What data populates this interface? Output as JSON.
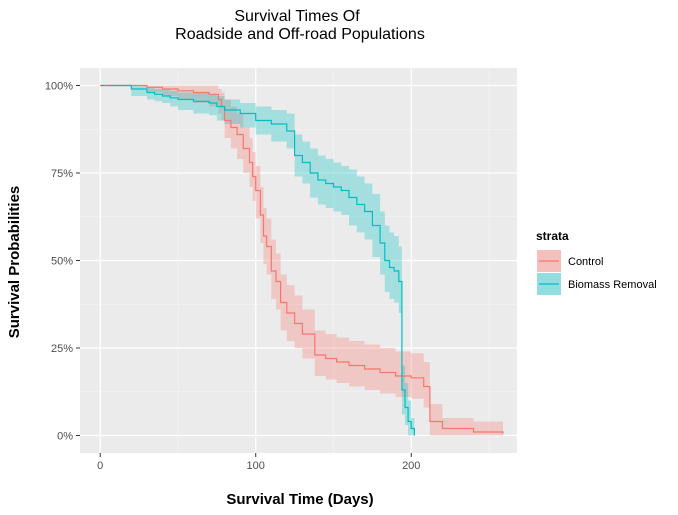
{
  "chart_data": {
    "type": "line",
    "step": true,
    "title_lines": [
      "Survival Times Of",
      "Roadside and Off-road Populations"
    ],
    "xlabel": "Survival Time (Days)",
    "ylabel": "Survival Probabilities",
    "xlim": [
      -13,
      268
    ],
    "ylim": [
      -0.05,
      1.05
    ],
    "x_ticks": [
      0,
      100,
      200
    ],
    "x_tick_labels": [
      "0",
      "100",
      "200"
    ],
    "y_ticks": [
      0,
      0.25,
      0.5,
      0.75,
      1.0
    ],
    "y_tick_labels": [
      "0%",
      "25%",
      "50%",
      "75%",
      "100%"
    ],
    "grid": true,
    "legend_position": "right",
    "legend_title": "strata",
    "series": [
      {
        "name": "Control",
        "color": "#f8766d",
        "fill": "#f8766d",
        "x": [
          0,
          30,
          40,
          50,
          60,
          70,
          76,
          78,
          80,
          84,
          88,
          92,
          96,
          98,
          100,
          103,
          105,
          107,
          110,
          113,
          116,
          120,
          125,
          130,
          138,
          145,
          152,
          160,
          170,
          180,
          190,
          200,
          208,
          212,
          220,
          240,
          259
        ],
        "y": [
          1.0,
          0.995,
          0.99,
          0.985,
          0.98,
          0.975,
          0.96,
          0.94,
          0.9,
          0.88,
          0.86,
          0.82,
          0.78,
          0.74,
          0.7,
          0.63,
          0.57,
          0.54,
          0.47,
          0.44,
          0.38,
          0.35,
          0.32,
          0.29,
          0.23,
          0.22,
          0.21,
          0.2,
          0.19,
          0.18,
          0.17,
          0.165,
          0.14,
          0.04,
          0.02,
          0.01,
          0.005
        ],
        "upper": [
          1.0,
          1.0,
          1.0,
          1.0,
          1.0,
          1.0,
          0.99,
          0.98,
          0.96,
          0.94,
          0.92,
          0.88,
          0.85,
          0.81,
          0.77,
          0.71,
          0.65,
          0.62,
          0.56,
          0.52,
          0.46,
          0.43,
          0.4,
          0.36,
          0.3,
          0.29,
          0.28,
          0.27,
          0.26,
          0.25,
          0.24,
          0.235,
          0.21,
          0.09,
          0.05,
          0.04,
          0.03
        ],
        "lower": [
          1.0,
          0.98,
          0.97,
          0.96,
          0.95,
          0.94,
          0.92,
          0.9,
          0.85,
          0.82,
          0.79,
          0.75,
          0.71,
          0.67,
          0.62,
          0.55,
          0.49,
          0.46,
          0.39,
          0.36,
          0.3,
          0.27,
          0.25,
          0.22,
          0.17,
          0.16,
          0.15,
          0.14,
          0.13,
          0.12,
          0.11,
          0.105,
          0.08,
          0.0,
          0.0,
          0.0,
          0.0
        ]
      },
      {
        "name": "Biomass Removal",
        "color": "#00bfc4",
        "fill": "#00bfc4",
        "x": [
          0,
          20,
          30,
          35,
          40,
          45,
          50,
          60,
          70,
          75,
          80,
          90,
          100,
          110,
          120,
          125,
          130,
          135,
          140,
          145,
          150,
          155,
          160,
          165,
          170,
          175,
          180,
          183,
          186,
          189,
          192,
          194,
          196,
          198,
          200,
          202
        ],
        "y": [
          1.0,
          0.99,
          0.98,
          0.975,
          0.97,
          0.965,
          0.96,
          0.955,
          0.95,
          0.94,
          0.93,
          0.92,
          0.9,
          0.89,
          0.87,
          0.8,
          0.78,
          0.75,
          0.73,
          0.72,
          0.71,
          0.7,
          0.68,
          0.66,
          0.64,
          0.6,
          0.55,
          0.5,
          0.48,
          0.47,
          0.44,
          0.13,
          0.08,
          0.04,
          0.02,
          0.0
        ],
        "upper": [
          1.0,
          1.0,
          0.995,
          0.99,
          0.99,
          0.985,
          0.98,
          0.98,
          0.975,
          0.97,
          0.96,
          0.95,
          0.94,
          0.93,
          0.92,
          0.86,
          0.84,
          0.82,
          0.8,
          0.79,
          0.78,
          0.77,
          0.76,
          0.74,
          0.72,
          0.69,
          0.64,
          0.6,
          0.58,
          0.57,
          0.54,
          0.2,
          0.15,
          0.1,
          0.05,
          0.02
        ],
        "lower": [
          1.0,
          0.97,
          0.96,
          0.955,
          0.95,
          0.94,
          0.93,
          0.92,
          0.915,
          0.9,
          0.89,
          0.88,
          0.86,
          0.84,
          0.82,
          0.74,
          0.72,
          0.68,
          0.66,
          0.65,
          0.64,
          0.63,
          0.6,
          0.58,
          0.56,
          0.51,
          0.46,
          0.41,
          0.39,
          0.38,
          0.35,
          0.06,
          0.03,
          0.0,
          0.0,
          0.0
        ]
      }
    ]
  }
}
